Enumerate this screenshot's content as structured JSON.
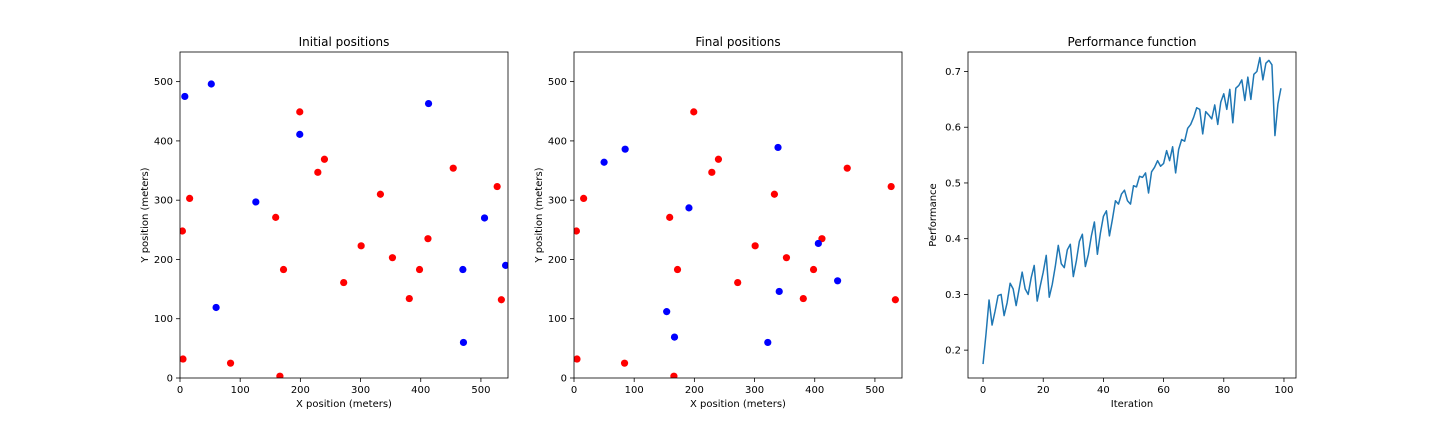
{
  "colors": {
    "red": "#ff0000",
    "blue": "#0000ff",
    "line": "#1f77b4",
    "axis": "#000000"
  },
  "chart_data": [
    {
      "type": "scatter",
      "title": "Initial positions",
      "xlabel": "X position (meters)",
      "ylabel": "Y position (meters)",
      "xlim": [
        0,
        545
      ],
      "ylim": [
        0,
        550
      ],
      "xticks": [
        0,
        100,
        200,
        300,
        400,
        500
      ],
      "yticks": [
        0,
        100,
        200,
        300,
        400,
        500
      ],
      "grid": false,
      "series": [
        {
          "color": "red",
          "points": [
            [
              5,
              32
            ],
            [
              4,
              248
            ],
            [
              16,
              303
            ],
            [
              84,
              25
            ],
            [
              166,
              3
            ],
            [
              159,
              271
            ],
            [
              172,
              183
            ],
            [
              199,
              449
            ],
            [
              229,
              347
            ],
            [
              240,
              369
            ],
            [
              272,
              161
            ],
            [
              301,
              223
            ],
            [
              333,
              310
            ],
            [
              353,
              203
            ],
            [
              381,
              134
            ],
            [
              398,
              183
            ],
            [
              412,
              235
            ],
            [
              454,
              354
            ],
            [
              527,
              323
            ],
            [
              534,
              132
            ]
          ]
        },
        {
          "color": "blue",
          "points": [
            [
              8,
              475
            ],
            [
              52,
              496
            ],
            [
              60,
              119
            ],
            [
              126,
              297
            ],
            [
              199,
              411
            ],
            [
              413,
              463
            ],
            [
              470,
              183
            ],
            [
              471,
              60
            ],
            [
              506,
              270
            ],
            [
              541,
              190
            ]
          ]
        }
      ]
    },
    {
      "type": "scatter",
      "title": "Final positions",
      "xlabel": "X position (meters)",
      "ylabel": "Y position (meters)",
      "xlim": [
        0,
        545
      ],
      "ylim": [
        0,
        550
      ],
      "xticks": [
        0,
        100,
        200,
        300,
        400,
        500
      ],
      "yticks": [
        0,
        100,
        200,
        300,
        400,
        500
      ],
      "grid": false,
      "series": [
        {
          "color": "red",
          "points": [
            [
              5,
              32
            ],
            [
              4,
              248
            ],
            [
              16,
              303
            ],
            [
              84,
              25
            ],
            [
              166,
              3
            ],
            [
              159,
              271
            ],
            [
              172,
              183
            ],
            [
              199,
              449
            ],
            [
              229,
              347
            ],
            [
              240,
              369
            ],
            [
              272,
              161
            ],
            [
              301,
              223
            ],
            [
              333,
              310
            ],
            [
              353,
              203
            ],
            [
              381,
              134
            ],
            [
              398,
              183
            ],
            [
              412,
              235
            ],
            [
              454,
              354
            ],
            [
              527,
              323
            ],
            [
              534,
              132
            ]
          ]
        },
        {
          "color": "blue",
          "points": [
            [
              50,
              364
            ],
            [
              85,
              386
            ],
            [
              154,
              112
            ],
            [
              167,
              69
            ],
            [
              191,
              287
            ],
            [
              322,
              60
            ],
            [
              339,
              389
            ],
            [
              341,
              146
            ],
            [
              406,
              227
            ],
            [
              438,
              164
            ]
          ]
        }
      ]
    },
    {
      "type": "line",
      "title": "Performance function",
      "xlabel": "Iteration",
      "ylabel": "Performance",
      "xlim": [
        -5,
        104
      ],
      "ylim": [
        0.15,
        0.735
      ],
      "xticks": [
        0,
        20,
        40,
        60,
        80,
        100
      ],
      "yticks": [
        0.2,
        0.3,
        0.4,
        0.5,
        0.6,
        0.7
      ],
      "grid": false,
      "series": [
        {
          "color": "line",
          "values": [
            0.175,
            0.23,
            0.29,
            0.245,
            0.27,
            0.298,
            0.3,
            0.262,
            0.285,
            0.32,
            0.31,
            0.28,
            0.31,
            0.34,
            0.31,
            0.3,
            0.33,
            0.352,
            0.288,
            0.315,
            0.34,
            0.37,
            0.295,
            0.318,
            0.35,
            0.388,
            0.355,
            0.348,
            0.38,
            0.39,
            0.332,
            0.36,
            0.395,
            0.408,
            0.35,
            0.372,
            0.405,
            0.43,
            0.372,
            0.41,
            0.44,
            0.45,
            0.405,
            0.435,
            0.468,
            0.462,
            0.48,
            0.487,
            0.468,
            0.462,
            0.495,
            0.493,
            0.512,
            0.51,
            0.518,
            0.482,
            0.52,
            0.528,
            0.54,
            0.53,
            0.535,
            0.558,
            0.54,
            0.565,
            0.518,
            0.56,
            0.578,
            0.575,
            0.598,
            0.605,
            0.618,
            0.635,
            0.632,
            0.588,
            0.628,
            0.622,
            0.615,
            0.64,
            0.605,
            0.645,
            0.66,
            0.632,
            0.668,
            0.608,
            0.67,
            0.675,
            0.685,
            0.648,
            0.69,
            0.65,
            0.695,
            0.7,
            0.725,
            0.685,
            0.715,
            0.72,
            0.712,
            0.585,
            0.642,
            0.67
          ]
        }
      ]
    }
  ]
}
